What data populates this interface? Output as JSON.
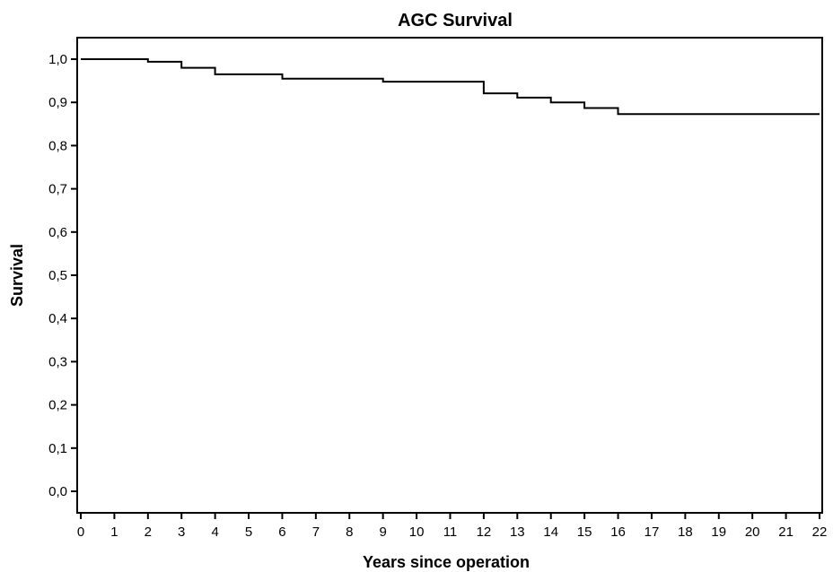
{
  "chart_data": {
    "type": "line",
    "title": "AGC Survival",
    "xlabel": "Years since operation",
    "ylabel": "Survival",
    "xlim": [
      0,
      22
    ],
    "ylim": [
      0,
      1
    ],
    "x_ticks": [
      0,
      1,
      2,
      3,
      4,
      5,
      6,
      7,
      8,
      9,
      10,
      11,
      12,
      13,
      14,
      15,
      16,
      17,
      18,
      19,
      20,
      21,
      22
    ],
    "y_ticks": [
      "0,0",
      "0,1",
      "0,2",
      "0,3",
      "0,4",
      "0,5",
      "0,6",
      "0,7",
      "0,8",
      "0,9",
      "1,0"
    ],
    "grid": false,
    "legend": "none",
    "step": true,
    "series": [
      {
        "x": [
          0,
          2,
          3,
          4,
          6,
          9,
          12,
          13,
          14,
          15,
          16,
          22
        ],
        "y": [
          1.0,
          0.994,
          0.98,
          0.965,
          0.955,
          0.948,
          0.921,
          0.911,
          0.9,
          0.887,
          0.873,
          0.873
        ]
      }
    ]
  }
}
